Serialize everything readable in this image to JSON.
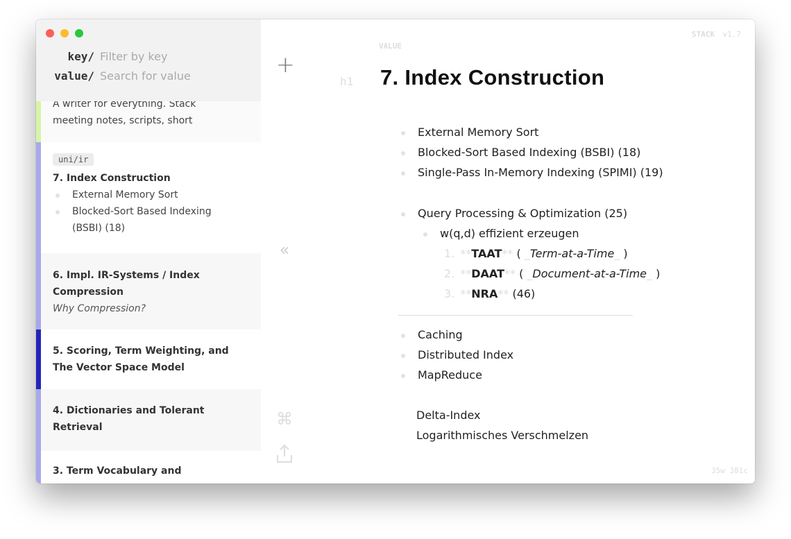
{
  "window": {
    "traffic_lights": {
      "close": "#fc5f57",
      "minimize": "#fdbc2e",
      "zoom": "#28c840"
    }
  },
  "search": {
    "key_label": "key/",
    "key_placeholder": "Filter by key",
    "value_label": "value/",
    "value_placeholder": "Search for value"
  },
  "sidebar": {
    "items": [
      {
        "preview": [
          "A writer for everything. Stack",
          "meeting notes, scripts, short"
        ],
        "color": "#d8f3a6"
      },
      {
        "tag": "uni/ir",
        "title": "7. Index Construction",
        "bullets": [
          "External Memory Sort",
          "Blocked-Sort Based Indexing",
          "(BSBI) (18)"
        ],
        "color": "#a8a8ea",
        "selected": true
      },
      {
        "title_lines": [
          "6. Impl. IR-Systems / Index",
          "Compression"
        ],
        "subtitle": "Why Compression?",
        "color": "#a8a8ea"
      },
      {
        "title_lines": [
          "5. Scoring, Term Weighting, and",
          "The Vector Space Model"
        ],
        "color": "#2424b8"
      },
      {
        "title_lines": [
          "4. Dictionaries and Tolerant",
          "Retrieval"
        ],
        "color": "#a8a8ea"
      },
      {
        "title_lines": [
          "3. Term Vocabulary and"
        ],
        "color": "#a8a8ea"
      }
    ]
  },
  "tools": {
    "add": "plus-icon",
    "collapse": "double-chevron-left-icon",
    "command": "command-icon",
    "share": "share-icon"
  },
  "editor": {
    "app_name": "STACK",
    "version": "v1.7",
    "field_label": "VALUE",
    "heading_marker": "h1",
    "title": "7. Index Construction",
    "bullets1": [
      "External Memory Sort",
      "Blocked-Sort Based Indexing (BSBI) (18)",
      "Single-Pass In-Memory Indexing (SPIMI) (19)"
    ],
    "query": "Query Processing & Optimization (25)",
    "sub": "w(q,d) effizient erzeugen",
    "ordered": [
      {
        "n": "1.",
        "bold": "TAAT",
        "italic": "Term-at-a-Time",
        "rest": ""
      },
      {
        "n": "2.",
        "bold": "DAAT",
        "italic": "Document-at-a-Time",
        "rest": ""
      },
      {
        "n": "3.",
        "bold": "NRA",
        "italic": "",
        "rest": "(46)"
      }
    ],
    "markers": {
      "bold": "**",
      "italic": "_",
      "open": "(",
      "close": ")"
    },
    "bullets2": [
      "Caching",
      "Distributed Index",
      "MapReduce"
    ],
    "plain": [
      "Delta-Index",
      "Logarithmisches Verschmelzen"
    ],
    "counts": "35w  381c"
  }
}
